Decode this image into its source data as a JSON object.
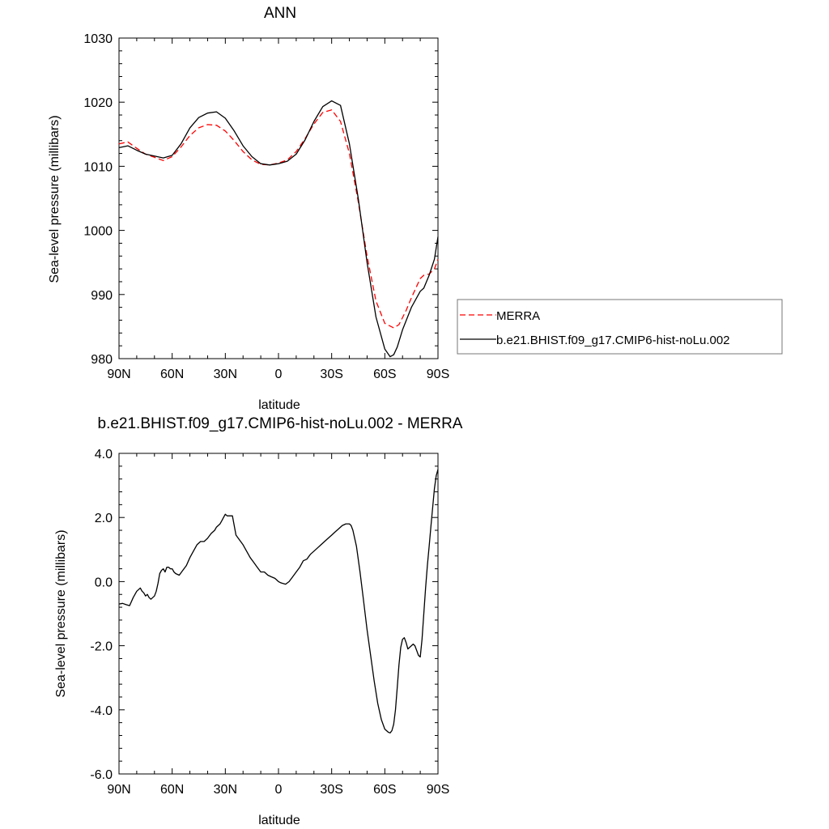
{
  "chart_data": [
    {
      "type": "line",
      "title": "ANN",
      "xlabel": "latitude",
      "ylabel": "Sea-level pressure (millibars)",
      "xlim": [
        90,
        -90
      ],
      "ylim": [
        980,
        1030
      ],
      "x_ticks": [
        90,
        60,
        30,
        0,
        -30,
        -60,
        -90
      ],
      "x_tick_labels": [
        "90N",
        "60N",
        "30N",
        "0",
        "30S",
        "60S",
        "90S"
      ],
      "y_ticks": [
        980,
        990,
        1000,
        1010,
        1020,
        1030
      ],
      "y_tick_labels": [
        "980",
        "990",
        "1000",
        "1010",
        "1020",
        "1030"
      ],
      "grid": false,
      "legend_position": "right",
      "series": [
        {
          "name": "MERRA",
          "color": "#ff0000",
          "dash": "dashed",
          "x": [
            90,
            85,
            80,
            75,
            70,
            65,
            60,
            55,
            50,
            45,
            40,
            35,
            30,
            25,
            20,
            15,
            10,
            5,
            0,
            -5,
            -10,
            -15,
            -20,
            -25,
            -30,
            -35,
            -40,
            -45,
            -50,
            -55,
            -60,
            -65,
            -68,
            -72,
            -75,
            -80,
            -82,
            -85,
            -88,
            -90
          ],
          "y": [
            1013.5,
            1013.8,
            1012.8,
            1011.9,
            1011.4,
            1010.9,
            1011.5,
            1013.0,
            1014.8,
            1016.0,
            1016.5,
            1016.4,
            1015.5,
            1014.0,
            1012.3,
            1011.0,
            1010.3,
            1010.2,
            1010.5,
            1011.0,
            1012.3,
            1014.3,
            1016.6,
            1018.4,
            1018.8,
            1017.0,
            1012.0,
            1004.5,
            996.0,
            989.0,
            985.5,
            984.8,
            985.3,
            987.5,
            989.5,
            992.5,
            993.0,
            993.2,
            994.0,
            995.5
          ]
        },
        {
          "name": "b.e21.BHIST.f09_g17.CMIP6-hist-noLu.002",
          "color": "#000000",
          "dash": "solid",
          "x": [
            90,
            85,
            80,
            75,
            70,
            65,
            60,
            55,
            50,
            45,
            40,
            35,
            30,
            25,
            20,
            15,
            10,
            5,
            0,
            -5,
            -10,
            -15,
            -20,
            -25,
            -30,
            -35,
            -40,
            -45,
            -50,
            -55,
            -60,
            -63,
            -65,
            -67,
            -70,
            -75,
            -80,
            -82,
            -85,
            -88,
            -90
          ],
          "y": [
            1012.9,
            1013.2,
            1012.5,
            1011.9,
            1011.6,
            1011.3,
            1011.7,
            1013.5,
            1016.0,
            1017.6,
            1018.3,
            1018.5,
            1017.5,
            1015.5,
            1013.2,
            1011.5,
            1010.4,
            1010.2,
            1010.4,
            1010.8,
            1011.9,
            1014.1,
            1017.0,
            1019.3,
            1020.2,
            1019.5,
            1013.5,
            1005.0,
            995.0,
            986.5,
            981.5,
            980.3,
            980.6,
            981.8,
            984.5,
            988.0,
            990.5,
            991.0,
            993.0,
            995.5,
            999.0
          ]
        }
      ]
    },
    {
      "type": "line",
      "title": "b.e21.BHIST.f09_g17.CMIP6-hist-noLu.002 - MERRA",
      "xlabel": "latitude",
      "ylabel": "Sea-level pressure (millibars)",
      "xlim": [
        90,
        -90
      ],
      "ylim": [
        -6,
        4
      ],
      "x_ticks": [
        90,
        60,
        30,
        0,
        -30,
        -60,
        -90
      ],
      "x_tick_labels": [
        "90N",
        "60N",
        "30N",
        "0",
        "30S",
        "60S",
        "90S"
      ],
      "y_ticks": [
        -6,
        -4,
        -2,
        0,
        2,
        4
      ],
      "y_tick_labels": [
        "-6.0",
        "-4.0",
        "-2.0",
        "0.0",
        "2.0",
        "4.0"
      ],
      "grid": false,
      "series": [
        {
          "color": "#000000",
          "dash": "solid",
          "x": [
            90,
            88,
            86,
            84,
            82,
            80,
            79,
            78,
            77,
            76,
            75,
            74,
            73,
            72,
            71,
            70,
            69,
            68,
            67,
            66,
            65,
            64,
            63,
            62,
            61,
            60,
            59,
            58,
            56,
            54,
            52,
            50,
            48,
            46,
            44,
            42,
            40,
            38,
            36,
            35,
            34,
            33,
            32,
            31,
            30,
            29,
            28,
            26,
            24,
            22,
            20,
            18,
            16,
            14,
            12,
            10,
            8,
            6,
            4,
            2,
            0,
            -1,
            -2,
            -4,
            -6,
            -8,
            -10,
            -12,
            -14,
            -16,
            -18,
            -20,
            -22,
            -24,
            -26,
            -28,
            -30,
            -32,
            -34,
            -36,
            -38,
            -39,
            -40,
            -41,
            -42,
            -44,
            -46,
            -48,
            -50,
            -52,
            -54,
            -56,
            -58,
            -60,
            -62,
            -63,
            -64,
            -65,
            -66,
            -67,
            -68,
            -69,
            -70,
            -71,
            -72,
            -73,
            -74,
            -75,
            -76,
            -77,
            -78,
            -79,
            -80,
            -81,
            -82,
            -83,
            -84,
            -85,
            -86,
            -87,
            -88,
            -89,
            -90
          ],
          "y": [
            -0.7,
            -0.68,
            -0.72,
            -0.75,
            -0.5,
            -0.3,
            -0.25,
            -0.2,
            -0.3,
            -0.35,
            -0.45,
            -0.4,
            -0.5,
            -0.55,
            -0.5,
            -0.45,
            -0.3,
            -0.05,
            0.25,
            0.35,
            0.4,
            0.3,
            0.45,
            0.45,
            0.4,
            0.4,
            0.3,
            0.25,
            0.2,
            0.35,
            0.5,
            0.75,
            0.95,
            1.15,
            1.25,
            1.25,
            1.35,
            1.5,
            1.6,
            1.7,
            1.75,
            1.8,
            1.9,
            2.0,
            2.1,
            2.05,
            2.05,
            2.05,
            1.45,
            1.3,
            1.15,
            0.95,
            0.75,
            0.6,
            0.45,
            0.3,
            0.3,
            0.2,
            0.15,
            0.1,
            0.0,
            -0.03,
            -0.05,
            -0.08,
            0.0,
            0.15,
            0.3,
            0.45,
            0.65,
            0.7,
            0.85,
            0.95,
            1.05,
            1.15,
            1.25,
            1.35,
            1.45,
            1.55,
            1.65,
            1.75,
            1.8,
            1.8,
            1.8,
            1.75,
            1.6,
            1.1,
            0.3,
            -0.6,
            -1.5,
            -2.3,
            -3.1,
            -3.8,
            -4.3,
            -4.6,
            -4.7,
            -4.72,
            -4.65,
            -4.45,
            -4.0,
            -3.3,
            -2.6,
            -2.05,
            -1.8,
            -1.75,
            -1.9,
            -2.1,
            -2.05,
            -2.0,
            -1.95,
            -2.0,
            -2.15,
            -2.3,
            -2.35,
            -1.8,
            -1.0,
            -0.2,
            0.5,
            1.1,
            1.7,
            2.3,
            2.9,
            3.3,
            3.5
          ]
        }
      ]
    }
  ]
}
